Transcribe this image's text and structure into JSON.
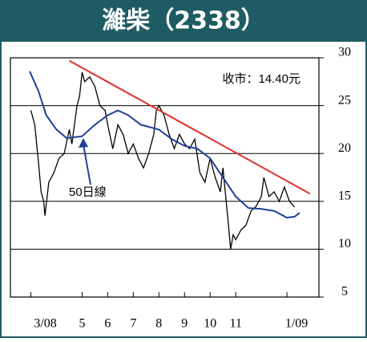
{
  "chart_data": {
    "type": "line",
    "title": "濰柴（2338）",
    "annotations": [
      "收市：14.40元",
      "50日線"
    ],
    "xlim": [
      -0.8,
      11.25
    ],
    "xticks": [
      {
        "value": 0,
        "label": "3/08"
      },
      {
        "value": 2,
        "label": "5"
      },
      {
        "value": 3,
        "label": "6"
      },
      {
        "value": 4,
        "label": "7"
      },
      {
        "value": 5,
        "label": "8"
      },
      {
        "value": 6,
        "label": "9"
      },
      {
        "value": 7,
        "label": "10"
      },
      {
        "value": 8,
        "label": "11"
      },
      {
        "value": 10,
        "label": "1/09"
      }
    ],
    "ylim": [
      5,
      30
    ],
    "yticks": [
      5,
      10,
      15,
      20,
      25,
      30
    ],
    "grid": true,
    "series": [
      {
        "color": "#000000",
        "x": [
          0,
          0.15,
          0.3,
          0.4,
          0.5,
          0.55,
          0.7,
          0.9,
          1.1,
          1.3,
          1.5,
          1.6,
          1.8,
          1.9,
          2.0,
          2.1,
          2.3,
          2.5,
          2.7,
          2.9,
          3.0,
          3.2,
          3.4,
          3.6,
          3.8,
          4.0,
          4.2,
          4.4,
          4.6,
          4.8,
          4.9,
          5.0,
          5.2,
          5.4,
          5.6,
          5.8,
          6.0,
          6.2,
          6.4,
          6.6,
          6.8,
          7.0,
          7.2,
          7.4,
          7.5,
          7.7,
          7.8,
          7.9,
          8.0,
          8.2,
          8.4,
          8.6,
          8.8,
          9.0,
          9.1,
          9.3,
          9.5,
          9.7,
          9.9,
          10.1,
          10.3
        ],
        "values": [
          24.5,
          23,
          19,
          16,
          15,
          13.5,
          17,
          18,
          19.5,
          20,
          22.5,
          21,
          25,
          26,
          28.5,
          27.5,
          28,
          27,
          25,
          24.5,
          23,
          20.5,
          23,
          22,
          20,
          21,
          19.5,
          18.5,
          20,
          22,
          24.5,
          25,
          24,
          22,
          20.5,
          22,
          21,
          20.5,
          21.5,
          18,
          17,
          19.5,
          17.5,
          16,
          18.5,
          13,
          10,
          11.5,
          11,
          12,
          12.5,
          14,
          14.5,
          15.5,
          17.5,
          15.5,
          16,
          15,
          16.5,
          15,
          14.4
        ]
      },
      {
        "color": "#1f3f99",
        "x": [
          -0.05,
          0.3,
          0.6,
          1.0,
          1.4,
          2.0,
          2.5,
          3.0,
          3.4,
          3.8,
          4.3,
          5.0,
          5.5,
          6.0,
          6.5,
          7.0,
          7.5,
          8.0,
          8.5,
          9.0,
          9.5,
          10.0,
          10.3,
          10.5
        ],
        "values": [
          28.6,
          26.5,
          24,
          22.5,
          21.6,
          21.8,
          23,
          24,
          24.5,
          24,
          23,
          22.5,
          21.5,
          20.8,
          20.5,
          19.5,
          17.5,
          15.5,
          14.3,
          14.2,
          14,
          13.3,
          13.4,
          13.8
        ]
      },
      {
        "color": "#e0302a",
        "x": [
          1.5,
          10.9
        ],
        "values": [
          29.7,
          15.8
        ]
      }
    ]
  }
}
